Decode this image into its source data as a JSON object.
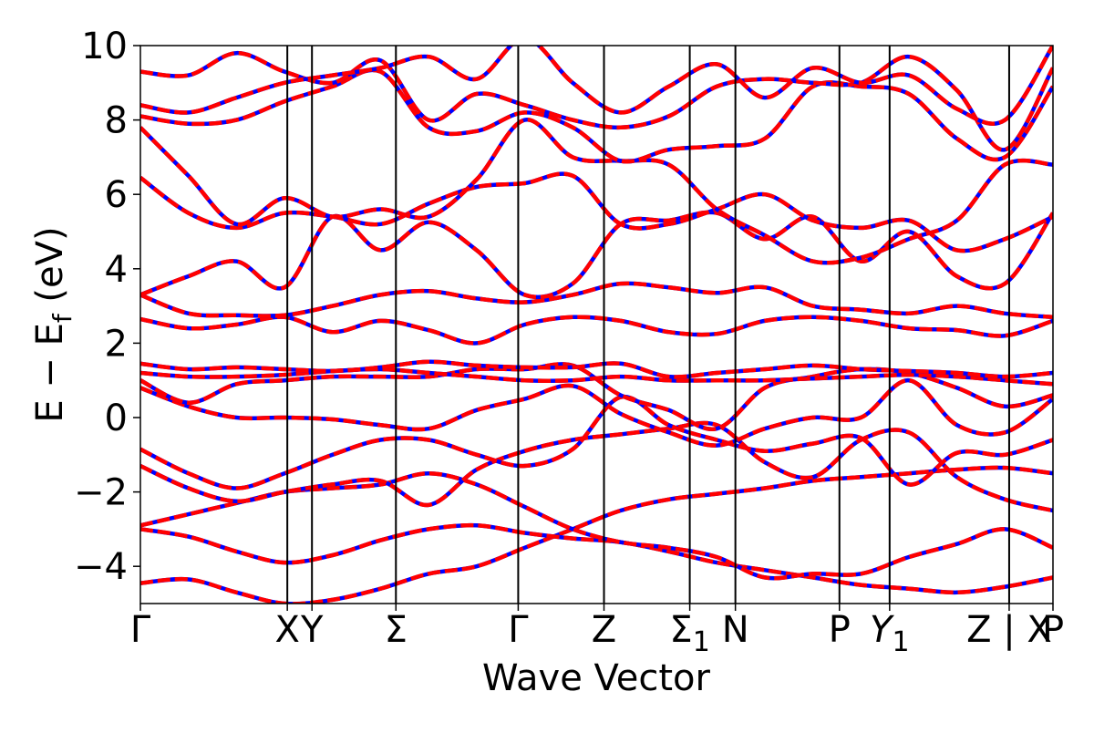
{
  "chart_data": {
    "type": "line",
    "title": "",
    "xlabel": "Wave Vector",
    "ylabel": "E − E_f (eV)",
    "ylabel_main": "E − E",
    "ylabel_sub": "f",
    "ylabel_unit": " (eV)",
    "ylim": [
      -5,
      10
    ],
    "yticks": [
      -4,
      -2,
      0,
      2,
      4,
      6,
      8,
      10
    ],
    "ytick_labels": [
      "−4",
      "−2",
      "0",
      "2",
      "4",
      "6",
      "8",
      "10"
    ],
    "xlim": [
      0,
      1
    ],
    "grid": false,
    "legend": "none",
    "colors": {
      "line_red": "#ff0000",
      "line_blue": "#0000ff",
      "divider": "#000000"
    },
    "kpoints": [
      {
        "label": "Γ",
        "x": 0.0
      },
      {
        "label": "X",
        "x": 0.161
      },
      {
        "label": "Y",
        "x": 0.188
      },
      {
        "label": "Σ",
        "x": 0.28
      },
      {
        "label": "Γ",
        "x": 0.414
      },
      {
        "label": "Z",
        "x": 0.508
      },
      {
        "label": "Σ",
        "sub": "1",
        "x": 0.602
      },
      {
        "label": "N",
        "x": 0.652
      },
      {
        "label": "P",
        "x": 0.766
      },
      {
        "label": "Y",
        "sub": "1",
        "x": 0.821,
        "italic": true
      },
      {
        "label": "Z | X",
        "x": 0.952
      },
      {
        "label": "P",
        "x": 1.0
      }
    ],
    "series": [
      {
        "values": [
          -4.45,
          -4.35,
          -4.7,
          -5.0,
          -4.9,
          -4.6,
          -4.2,
          -4.0,
          -3.5,
          -3.0,
          -2.5,
          -2.2,
          -2.05,
          -1.9,
          -1.7,
          -1.6,
          -1.5,
          -1.4,
          -1.35,
          -1.5
        ]
      },
      {
        "values": [
          -3.0,
          -3.2,
          -3.6,
          -3.9,
          -3.7,
          -3.3,
          -3.0,
          -2.9,
          -3.1,
          -3.25,
          -3.35,
          -3.6,
          -3.9,
          -4.1,
          -4.3,
          -4.5,
          -4.6,
          -4.7,
          -4.55,
          -4.3
        ]
      },
      {
        "values": [
          -2.9,
          -2.6,
          -2.3,
          -2.0,
          -1.9,
          -1.8,
          -1.5,
          -1.8,
          -2.4,
          -3.0,
          -3.35,
          -3.5,
          -3.75,
          -4.3,
          -4.2,
          -4.2,
          -3.75,
          -3.4,
          -3.0,
          -3.5
        ]
      },
      {
        "values": [
          -1.3,
          -1.9,
          -2.25,
          -2.0,
          -1.8,
          -1.7,
          -2.35,
          -1.4,
          -0.9,
          -0.6,
          -0.45,
          -0.3,
          -0.2,
          -1.2,
          -1.6,
          -0.6,
          -0.4,
          -1.6,
          -2.2,
          -2.5
        ]
      },
      {
        "values": [
          -0.85,
          -1.5,
          -1.9,
          -1.5,
          -1.0,
          -0.6,
          -0.6,
          -1.0,
          -1.3,
          -0.85,
          0.55,
          -0.2,
          -0.6,
          -0.9,
          -0.7,
          -0.55,
          -1.8,
          -0.95,
          -1.0,
          -0.6
        ]
      },
      {
        "values": [
          0.8,
          0.3,
          0.0,
          0.0,
          -0.05,
          -0.2,
          -0.3,
          0.2,
          0.5,
          0.85,
          0.1,
          -0.4,
          -0.75,
          -0.3,
          0.0,
          0.0,
          1.0,
          -0.2,
          -0.4,
          0.5
        ]
      },
      {
        "values": [
          1.0,
          0.4,
          0.9,
          1.0,
          1.1,
          1.1,
          1.1,
          1.3,
          1.3,
          1.4,
          0.6,
          0.2,
          -0.3,
          0.8,
          1.1,
          1.3,
          1.2,
          0.8,
          0.3,
          0.6
        ]
      },
      {
        "values": [
          1.2,
          1.1,
          1.1,
          1.15,
          1.25,
          1.3,
          1.2,
          1.1,
          1.0,
          1.0,
          1.1,
          1.0,
          1.0,
          1.0,
          1.05,
          1.1,
          1.15,
          1.1,
          1.0,
          0.9
        ]
      },
      {
        "values": [
          1.45,
          1.3,
          1.35,
          1.3,
          1.25,
          1.35,
          1.5,
          1.4,
          1.35,
          1.35,
          1.45,
          1.1,
          1.2,
          1.3,
          1.4,
          1.3,
          1.25,
          1.2,
          1.1,
          1.2
        ]
      },
      {
        "values": [
          2.65,
          2.4,
          2.5,
          2.7,
          2.3,
          2.6,
          2.35,
          2.0,
          2.5,
          2.7,
          2.6,
          2.3,
          2.25,
          2.6,
          2.7,
          2.6,
          2.4,
          2.35,
          2.2,
          2.6
        ]
      },
      {
        "values": [
          3.3,
          2.8,
          2.75,
          2.75,
          3.0,
          3.3,
          3.4,
          3.2,
          3.1,
          3.3,
          3.6,
          3.5,
          3.35,
          3.5,
          3.0,
          2.9,
          2.8,
          3.0,
          2.8,
          2.7
        ]
      },
      {
        "values": [
          3.3,
          3.8,
          4.2,
          3.5,
          5.4,
          4.5,
          5.25,
          4.5,
          3.3,
          3.6,
          5.2,
          5.3,
          5.5,
          4.8,
          5.4,
          4.2,
          5.0,
          3.8,
          3.6,
          5.5
        ]
      },
      {
        "values": [
          6.45,
          5.5,
          5.1,
          5.5,
          5.4,
          5.2,
          5.75,
          6.2,
          6.3,
          6.5,
          5.2,
          5.2,
          5.6,
          6.0,
          5.3,
          5.1,
          5.3,
          4.5,
          4.8,
          5.4
        ]
      },
      {
        "values": [
          7.8,
          6.5,
          5.2,
          5.9,
          5.4,
          5.6,
          5.4,
          6.4,
          8.0,
          7.0,
          6.9,
          6.8,
          5.6,
          4.9,
          4.2,
          4.3,
          4.8,
          5.3,
          6.8,
          6.8
        ]
      },
      {
        "values": [
          8.1,
          7.9,
          8.0,
          8.5,
          8.9,
          9.3,
          7.8,
          7.7,
          8.2,
          7.8,
          6.9,
          7.2,
          7.3,
          7.5,
          8.9,
          8.9,
          8.7,
          7.5,
          7.0,
          8.9
        ]
      },
      {
        "values": [
          9.3,
          9.2,
          9.8,
          9.3,
          9.0,
          9.6,
          8.0,
          8.7,
          8.4,
          8.0,
          7.8,
          8.1,
          8.9,
          9.1,
          9.0,
          9.0,
          9.7,
          8.8,
          7.2,
          9.4
        ]
      },
      {
        "values": [
          8.4,
          8.2,
          8.6,
          9.0,
          9.2,
          9.4,
          9.7,
          9.1,
          10.2,
          9.0,
          8.2,
          8.9,
          9.5,
          8.6,
          9.4,
          9.0,
          9.2,
          8.3,
          8.0,
          10.0
        ]
      }
    ]
  }
}
